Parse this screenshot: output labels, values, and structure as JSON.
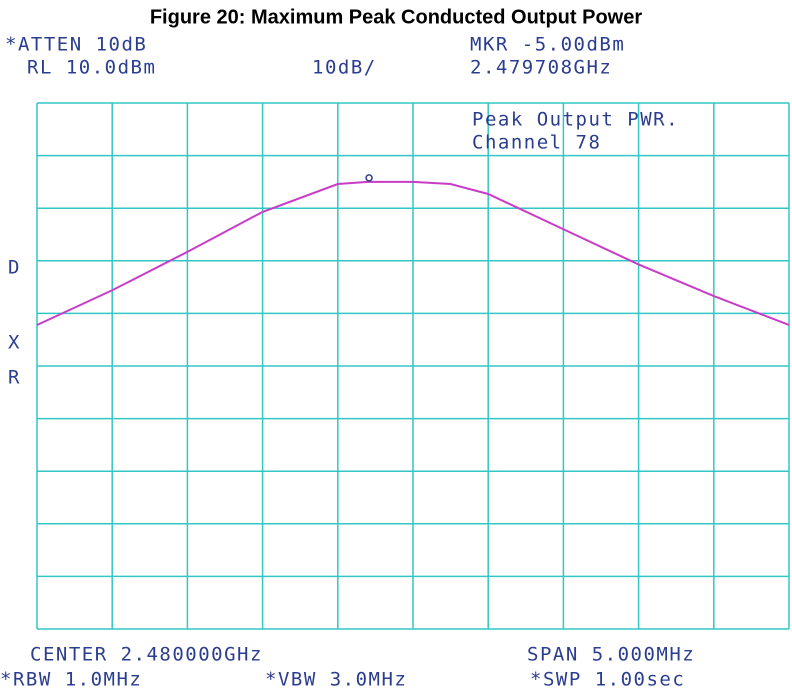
{
  "chart_data": {
    "type": "line",
    "title": "Figure 20: Maximum Peak Conducted Output Power",
    "annotations": [
      "*ATTEN 10dB",
      "RL 10.0dBm",
      "10dB/",
      "MKR -5.00dBm",
      "2.479708GHz",
      "Peak Output PWR.",
      "Channel 78",
      "D",
      "X",
      "R",
      "CENTER 2.480000GHz",
      "SPAN 5.000MHz",
      "*RBW 1.0MHz",
      "*VBW 3.0MHz",
      "*SWP 1.00sec"
    ],
    "x": [
      2.4775,
      2.478,
      2.4785,
      2.479,
      2.4795,
      2.4797,
      2.48,
      2.48025,
      2.4805,
      2.481,
      2.4815,
      2.482,
      2.4825
    ],
    "series": [
      {
        "name": "trace",
        "color": "#c83cc8",
        "values": [
          -32.2,
          -25.6,
          -18.3,
          -10.7,
          -5.4,
          -5.0,
          -5.0,
          -5.4,
          -7.3,
          -14.0,
          -20.7,
          -26.7,
          -32.2
        ]
      }
    ],
    "marker": {
      "x": 2.479708,
      "y": -5.0
    },
    "xlim": [
      2.4775,
      2.4825
    ],
    "ylim": [
      -90,
      10
    ],
    "grid": true,
    "grid_color": "#33c6c6",
    "text_color": "#2b3d8f"
  }
}
